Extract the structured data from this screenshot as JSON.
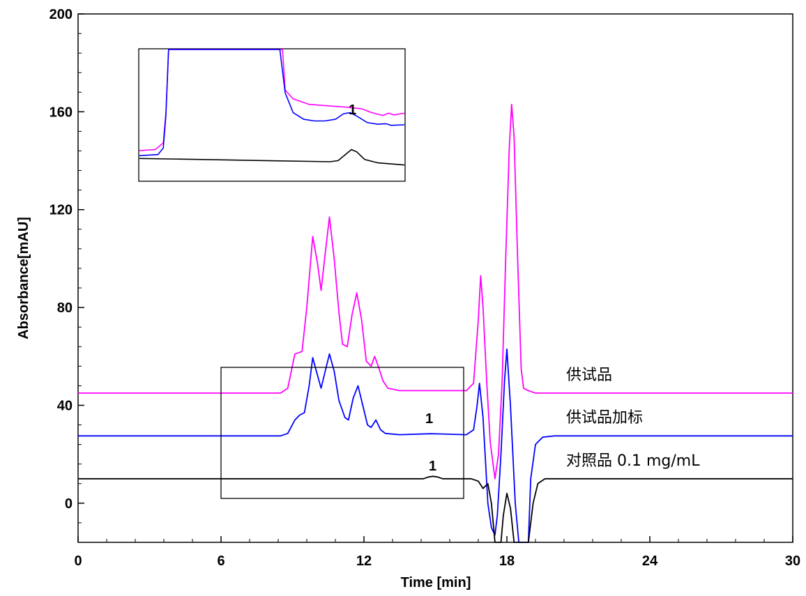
{
  "chart_data": {
    "type": "line",
    "xlabel": "Time [min]",
    "ylabel": "Absorbance[mAU]",
    "xlim": [
      0,
      30
    ],
    "ylim": [
      -16,
      200
    ],
    "x_ticks": [
      "0",
      "6",
      "12",
      "18",
      "24",
      "30"
    ],
    "y_ticks": [
      "0",
      "40",
      "80",
      "120",
      "160",
      "200"
    ],
    "grid": false,
    "series": [
      {
        "name": "供试品",
        "color": "#ff00ff",
        "points": [
          [
            0,
            45
          ],
          [
            8.5,
            45
          ],
          [
            8.8,
            47
          ],
          [
            9.1,
            61
          ],
          [
            9.4,
            62
          ],
          [
            9.6,
            80
          ],
          [
            9.85,
            109
          ],
          [
            10.05,
            98
          ],
          [
            10.2,
            87
          ],
          [
            10.35,
            100
          ],
          [
            10.55,
            117
          ],
          [
            10.75,
            100
          ],
          [
            10.95,
            78
          ],
          [
            11.1,
            65
          ],
          [
            11.3,
            64
          ],
          [
            11.5,
            77
          ],
          [
            11.7,
            86
          ],
          [
            11.9,
            75
          ],
          [
            12.1,
            58
          ],
          [
            12.3,
            56
          ],
          [
            12.45,
            60
          ],
          [
            12.6,
            56
          ],
          [
            12.8,
            50
          ],
          [
            13.0,
            47
          ],
          [
            13.5,
            46
          ],
          [
            16.3,
            46
          ],
          [
            16.6,
            49
          ],
          [
            16.8,
            75
          ],
          [
            16.9,
            93
          ],
          [
            17.0,
            80
          ],
          [
            17.15,
            50
          ],
          [
            17.3,
            25
          ],
          [
            17.5,
            10
          ],
          [
            17.65,
            20
          ],
          [
            17.8,
            50
          ],
          [
            17.95,
            100
          ],
          [
            18.1,
            145
          ],
          [
            18.2,
            163
          ],
          [
            18.3,
            150
          ],
          [
            18.45,
            100
          ],
          [
            18.6,
            55
          ],
          [
            18.7,
            47
          ],
          [
            18.9,
            46
          ],
          [
            19.2,
            45
          ],
          [
            30,
            45
          ]
        ]
      },
      {
        "name": "供试品加标",
        "color": "#0000ff",
        "points": [
          [
            0,
            27.5
          ],
          [
            8.5,
            27.5
          ],
          [
            8.8,
            28.5
          ],
          [
            9.1,
            34
          ],
          [
            9.3,
            36
          ],
          [
            9.5,
            37
          ],
          [
            9.7,
            48
          ],
          [
            9.85,
            59.5
          ],
          [
            10.0,
            54
          ],
          [
            10.2,
            47
          ],
          [
            10.35,
            53
          ],
          [
            10.55,
            61
          ],
          [
            10.75,
            54
          ],
          [
            10.95,
            42
          ],
          [
            11.2,
            35
          ],
          [
            11.35,
            34
          ],
          [
            11.55,
            43
          ],
          [
            11.75,
            48
          ],
          [
            11.95,
            40
          ],
          [
            12.15,
            32
          ],
          [
            12.3,
            31
          ],
          [
            12.5,
            34
          ],
          [
            12.7,
            30
          ],
          [
            12.9,
            28.5
          ],
          [
            13.5,
            28
          ],
          [
            14.8,
            28.4
          ],
          [
            15.2,
            28.3
          ],
          [
            16.3,
            28
          ],
          [
            16.6,
            30
          ],
          [
            16.75,
            40
          ],
          [
            16.85,
            49
          ],
          [
            17.0,
            35
          ],
          [
            17.2,
            0
          ],
          [
            17.35,
            -10
          ],
          [
            17.5,
            -13
          ],
          [
            17.6,
            -5
          ],
          [
            17.75,
            20
          ],
          [
            17.9,
            50
          ],
          [
            18.0,
            63
          ],
          [
            18.15,
            40
          ],
          [
            18.35,
            0
          ],
          [
            18.5,
            -16
          ],
          [
            18.9,
            -16
          ],
          [
            19.0,
            10
          ],
          [
            19.2,
            24
          ],
          [
            19.5,
            27
          ],
          [
            20,
            27.5
          ],
          [
            30,
            27.5
          ]
        ]
      },
      {
        "name": "对照品 0.1 mg/mL",
        "color": "#000000",
        "points": [
          [
            0,
            10
          ],
          [
            14.5,
            10
          ],
          [
            14.7,
            10.7
          ],
          [
            14.9,
            11
          ],
          [
            15.1,
            10.7
          ],
          [
            15.3,
            10
          ],
          [
            16.5,
            10
          ],
          [
            16.8,
            9
          ],
          [
            17.0,
            6
          ],
          [
            17.2,
            8
          ],
          [
            17.35,
            0
          ],
          [
            17.5,
            -16
          ],
          [
            17.75,
            -16
          ],
          [
            17.85,
            -5
          ],
          [
            18.0,
            4
          ],
          [
            18.15,
            -2
          ],
          [
            18.3,
            -16
          ],
          [
            18.9,
            -16
          ],
          [
            19.1,
            0
          ],
          [
            19.3,
            8
          ],
          [
            19.6,
            10
          ],
          [
            30,
            10
          ]
        ]
      }
    ],
    "inset_series": [
      {
        "color": "#ff00ff",
        "points": [
          [
            0,
            0.05
          ],
          [
            0.06,
            0.06
          ],
          [
            0.09,
            0.12
          ],
          [
            0.1,
            0.4
          ],
          [
            0.11,
            1
          ],
          [
            0.54,
            1
          ],
          [
            0.55,
            0.6
          ],
          [
            0.58,
            0.52
          ],
          [
            0.64,
            0.47
          ],
          [
            0.72,
            0.455
          ],
          [
            0.78,
            0.445
          ],
          [
            0.84,
            0.43
          ],
          [
            0.87,
            0.4
          ],
          [
            0.9,
            0.38
          ],
          [
            0.92,
            0.37
          ],
          [
            0.94,
            0.39
          ],
          [
            0.96,
            0.375
          ],
          [
            1,
            0.39
          ]
        ]
      },
      {
        "color": "#0000ff",
        "points": [
          [
            0,
            0.03
          ],
          [
            0.07,
            0.04
          ],
          [
            0.09,
            0.1
          ],
          [
            0.1,
            0.4
          ],
          [
            0.11,
            1
          ],
          [
            0.53,
            1
          ],
          [
            0.55,
            0.6
          ],
          [
            0.58,
            0.42
          ],
          [
            0.62,
            0.36
          ],
          [
            0.66,
            0.345
          ],
          [
            0.7,
            0.345
          ],
          [
            0.74,
            0.36
          ],
          [
            0.77,
            0.41
          ],
          [
            0.795,
            0.42
          ],
          [
            0.82,
            0.39
          ],
          [
            0.86,
            0.33
          ],
          [
            0.9,
            0.315
          ],
          [
            0.93,
            0.32
          ],
          [
            0.95,
            0.305
          ],
          [
            1,
            0.31
          ]
        ]
      },
      {
        "color": "#000000",
        "points": [
          [
            0,
            0.03
          ],
          [
            0.72,
            0.0
          ],
          [
            0.75,
            0.01
          ],
          [
            0.78,
            0.07
          ],
          [
            0.8,
            0.11
          ],
          [
            0.82,
            0.09
          ],
          [
            0.85,
            0.02
          ],
          [
            0.9,
            -0.01
          ],
          [
            1,
            -0.03
          ]
        ]
      }
    ],
    "annotations": [
      {
        "text": "1",
        "x": 14.8,
        "y": 32
      },
      {
        "text": "1",
        "x": 14.9,
        "y": 13
      }
    ],
    "inset_annotation": "1",
    "series_labels": [
      "供试品",
      "供试品加标",
      "对照品 0.1 mg/mL"
    ]
  }
}
